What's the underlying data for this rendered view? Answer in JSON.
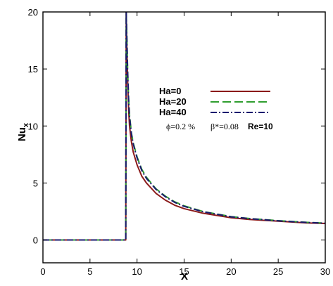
{
  "chart_data": {
    "type": "line",
    "xlabel": "X",
    "ylabel": "Nu",
    "ylabel_subscript": "x",
    "xlim": [
      0,
      30
    ],
    "ylim": [
      -2,
      20
    ],
    "x_ticks": [
      0,
      5,
      10,
      15,
      20,
      25,
      30
    ],
    "y_ticks": [
      0,
      5,
      10,
      15,
      20
    ],
    "grid": false,
    "legend_position": "upper-right",
    "parameters": {
      "phi": "ϕ=0.2 %",
      "beta": "β*=0.08",
      "re": "Re=10"
    },
    "series": [
      {
        "name": "Ha=0",
        "color": "#8b1a1a",
        "dash": "solid",
        "x": [
          0,
          8.8,
          8.85,
          8.9,
          9.0,
          9.1,
          9.2,
          9.4,
          9.6,
          10,
          10.5,
          11,
          12,
          13,
          14,
          15,
          17,
          20,
          22,
          25,
          28,
          30
        ],
        "y": [
          0,
          0,
          20,
          17.5,
          14.0,
          11.5,
          10.0,
          8.6,
          7.7,
          6.6,
          5.6,
          5.0,
          4.1,
          3.5,
          3.05,
          2.75,
          2.35,
          1.95,
          1.8,
          1.65,
          1.5,
          1.45
        ]
      },
      {
        "name": "Ha=20",
        "color": "#2e9e2e",
        "dash": "long-dash",
        "x": [
          0,
          8.8,
          8.85,
          8.9,
          9.0,
          9.1,
          9.2,
          9.4,
          9.6,
          10,
          10.5,
          11,
          12,
          13,
          14,
          15,
          17,
          20,
          22,
          25,
          28,
          30
        ],
        "y": [
          0,
          0,
          20,
          18.5,
          15.0,
          12.5,
          11.0,
          9.4,
          8.5,
          7.3,
          6.2,
          5.5,
          4.5,
          3.85,
          3.35,
          3.0,
          2.5,
          2.05,
          1.88,
          1.7,
          1.55,
          1.48
        ]
      },
      {
        "name": "Ha=40",
        "color": "#1a1a6e",
        "dash": "dash-dot",
        "x": [
          0,
          8.8,
          8.85,
          8.9,
          9.0,
          9.1,
          9.2,
          9.4,
          9.6,
          10,
          10.5,
          11,
          12,
          13,
          14,
          15,
          17,
          20,
          22,
          25,
          28,
          30
        ],
        "y": [
          0,
          0,
          20,
          18.2,
          14.8,
          12.3,
          10.8,
          9.3,
          8.4,
          7.2,
          6.1,
          5.4,
          4.45,
          3.8,
          3.3,
          2.95,
          2.48,
          2.03,
          1.87,
          1.68,
          1.54,
          1.47
        ]
      }
    ]
  }
}
